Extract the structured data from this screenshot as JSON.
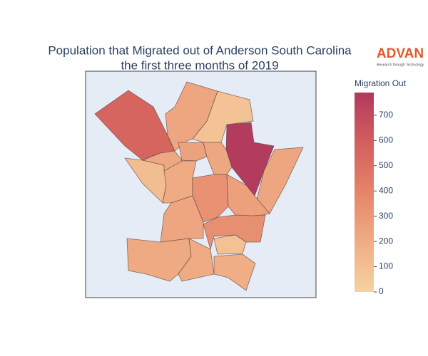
{
  "chart_data": {
    "type": "choropleth",
    "title": "Population that Migrated out of Anderson South Carolina",
    "subtitle": "the first three months of 2019",
    "logo": "ADVAN",
    "logo_tagline": "Research through Technology",
    "colorbar_title": "Migration Out",
    "values": [
      560,
      780,
      80,
      230,
      230,
      110,
      220,
      250,
      220,
      200,
      330,
      260,
      340,
      230,
      90,
      210,
      200,
      190
    ],
    "zlim": [
      0,
      790
    ],
    "zticks": [
      0,
      100,
      200,
      300,
      400,
      500,
      600,
      700
    ],
    "colorscale": [
      "#f6d2a0",
      "#efad84",
      "#e4856a",
      "#d35f5d",
      "#b0395e"
    ]
  }
}
